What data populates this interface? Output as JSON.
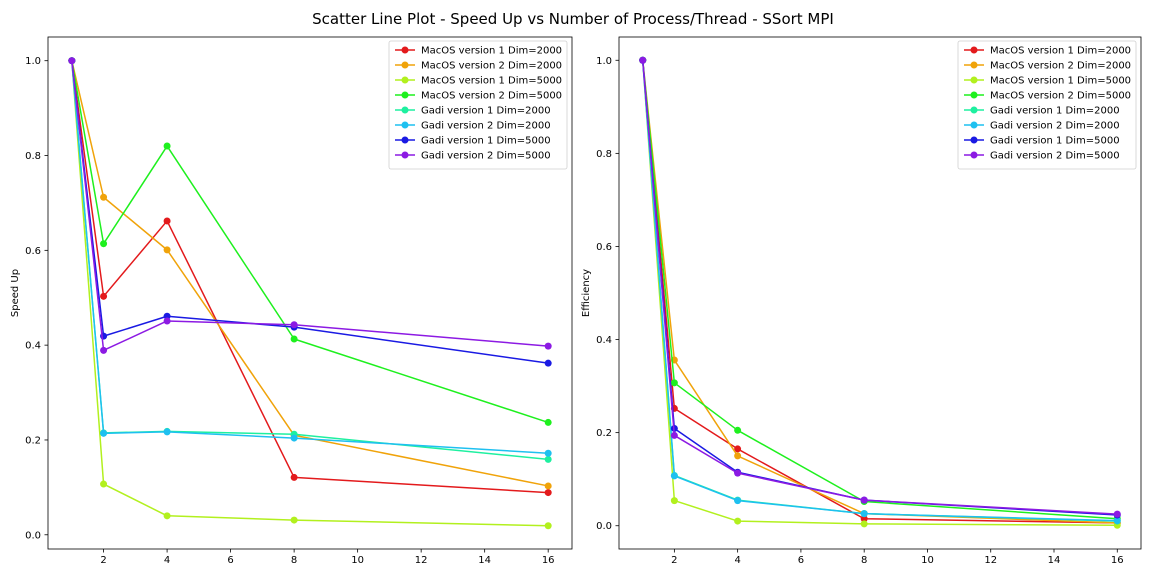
{
  "title": "Scatter Line Plot - Speed Up vs Number of Process/Thread - SSort MPI",
  "chart_data": [
    {
      "type": "line",
      "xlabel": "",
      "ylabel": "Speed Up",
      "xlim": [
        0.25,
        16.75
      ],
      "ylim": [
        -0.03,
        1.05
      ],
      "xticks": [
        2,
        4,
        6,
        8,
        10,
        12,
        14,
        16
      ],
      "yticks": [
        0.0,
        0.2,
        0.4,
        0.6,
        0.8,
        1.0
      ],
      "legend": "top-right",
      "grid": false,
      "x": [
        1,
        2,
        4,
        8,
        16
      ],
      "series": [
        {
          "name": "MacOS version 1 Dim=2000",
          "color": "#e31a1c",
          "values": [
            1.0,
            0.503,
            0.662,
            0.121,
            0.089
          ]
        },
        {
          "name": "MacOS version 2 Dim=2000",
          "color": "#f0a30a",
          "values": [
            1.0,
            0.712,
            0.601,
            0.21,
            0.103
          ]
        },
        {
          "name": "MacOS version 1 Dim=5000",
          "color": "#b2f01e",
          "values": [
            1.0,
            0.107,
            0.04,
            0.031,
            0.019
          ]
        },
        {
          "name": "MacOS version 2 Dim=5000",
          "color": "#1ef01e",
          "values": [
            1.0,
            0.614,
            0.82,
            0.413,
            0.237
          ]
        },
        {
          "name": "Gadi version 1 Dim=2000",
          "color": "#1ef0a0",
          "values": [
            1.0,
            0.215,
            0.218,
            0.212,
            0.159
          ]
        },
        {
          "name": "Gadi version 2 Dim=2000",
          "color": "#1ec0f0",
          "values": [
            1.0,
            0.214,
            0.217,
            0.204,
            0.172
          ]
        },
        {
          "name": "Gadi version 1 Dim=5000",
          "color": "#1a1ae3",
          "values": [
            1.0,
            0.419,
            0.461,
            0.438,
            0.362
          ]
        },
        {
          "name": "Gadi version 2 Dim=5000",
          "color": "#8c1ae3",
          "values": [
            1.0,
            0.389,
            0.451,
            0.443,
            0.398
          ]
        }
      ]
    },
    {
      "type": "line",
      "xlabel": "",
      "ylabel": "Efficiency",
      "xlim": [
        0.25,
        16.75
      ],
      "ylim": [
        -0.05,
        1.05
      ],
      "xticks": [
        2,
        4,
        6,
        8,
        10,
        12,
        14,
        16
      ],
      "yticks": [
        0.0,
        0.2,
        0.4,
        0.6,
        0.8,
        1.0
      ],
      "legend": "top-right",
      "grid": false,
      "x": [
        1,
        2,
        4,
        8,
        16
      ],
      "series": [
        {
          "name": "MacOS version 1 Dim=2000",
          "color": "#e31a1c",
          "values": [
            1.0,
            0.252,
            0.165,
            0.015,
            0.006
          ]
        },
        {
          "name": "MacOS version 2 Dim=2000",
          "color": "#f0a30a",
          "values": [
            1.0,
            0.356,
            0.15,
            0.026,
            0.006
          ]
        },
        {
          "name": "MacOS version 1 Dim=5000",
          "color": "#b2f01e",
          "values": [
            1.0,
            0.054,
            0.01,
            0.004,
            0.001
          ]
        },
        {
          "name": "MacOS version 2 Dim=5000",
          "color": "#1ef01e",
          "values": [
            1.0,
            0.307,
            0.205,
            0.052,
            0.015
          ]
        },
        {
          "name": "Gadi version 1 Dim=2000",
          "color": "#1ef0a0",
          "values": [
            1.0,
            0.108,
            0.055,
            0.026,
            0.01
          ]
        },
        {
          "name": "Gadi version 2 Dim=2000",
          "color": "#1ec0f0",
          "values": [
            1.0,
            0.107,
            0.054,
            0.026,
            0.011
          ]
        },
        {
          "name": "Gadi version 1 Dim=5000",
          "color": "#1a1ae3",
          "values": [
            1.0,
            0.209,
            0.115,
            0.055,
            0.023
          ]
        },
        {
          "name": "Gadi version 2 Dim=5000",
          "color": "#8c1ae3",
          "values": [
            1.0,
            0.194,
            0.113,
            0.055,
            0.025
          ]
        }
      ]
    }
  ]
}
